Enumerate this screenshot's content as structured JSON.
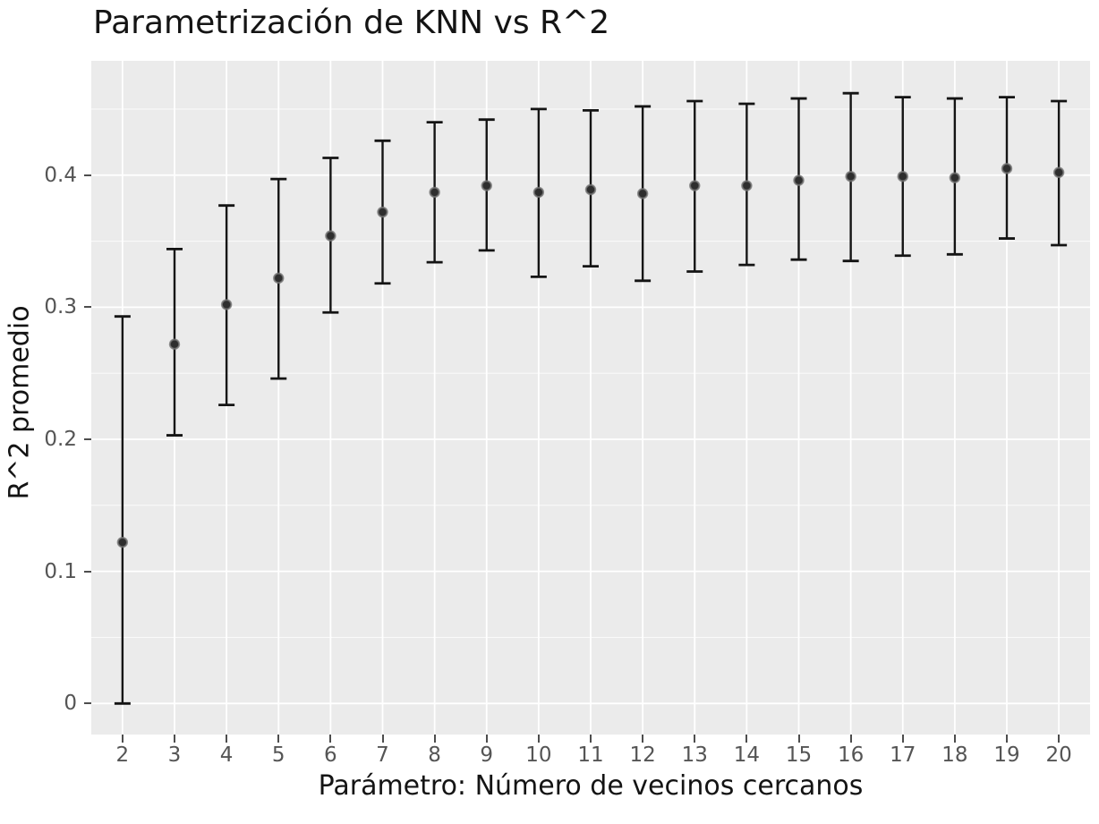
{
  "chart_data": {
    "type": "scatter",
    "subtype": "errorbar",
    "title": "Parametrización de KNN vs R^2",
    "xlabel": "Parámetro: Número de vecinos cercanos",
    "ylabel": "R^2 promedio",
    "x": [
      2,
      3,
      4,
      5,
      6,
      7,
      8,
      9,
      10,
      11,
      12,
      13,
      14,
      15,
      16,
      17,
      18,
      19,
      20
    ],
    "series": [
      {
        "name": "R^2 promedio",
        "values": [
          0.122,
          0.272,
          0.302,
          0.322,
          0.354,
          0.372,
          0.387,
          0.392,
          0.387,
          0.389,
          0.386,
          0.392,
          0.392,
          0.396,
          0.399,
          0.399,
          0.398,
          0.405,
          0.402
        ],
        "err_lower": [
          0.0,
          0.203,
          0.226,
          0.246,
          0.296,
          0.318,
          0.334,
          0.343,
          0.323,
          0.331,
          0.32,
          0.327,
          0.332,
          0.336,
          0.335,
          0.339,
          0.34,
          0.352,
          0.347
        ],
        "err_upper": [
          0.293,
          0.344,
          0.377,
          0.397,
          0.413,
          0.426,
          0.44,
          0.442,
          0.45,
          0.449,
          0.452,
          0.456,
          0.454,
          0.458,
          0.462,
          0.459,
          0.458,
          0.459,
          0.456
        ]
      }
    ],
    "xticks": [
      2,
      3,
      4,
      5,
      6,
      7,
      8,
      9,
      10,
      11,
      12,
      13,
      14,
      15,
      16,
      17,
      18,
      19,
      20
    ],
    "xtick_labels": [
      "2",
      "3",
      "4",
      "5",
      "6",
      "7",
      "8",
      "9",
      "10",
      "11",
      "12",
      "13",
      "14",
      "15",
      "16",
      "17",
      "18",
      "19",
      "20"
    ],
    "yticks": [
      0,
      0.1,
      0.2,
      0.3,
      0.4
    ],
    "ytick_labels": [
      "0",
      "0.1",
      "0.2",
      "0.3",
      "0.4"
    ],
    "minor_yticks": [
      0.05,
      0.15,
      0.25,
      0.35,
      0.45
    ],
    "xlim": [
      1.4,
      20.6
    ],
    "ylim": [
      -0.0235,
      0.4865
    ],
    "grid": "on",
    "legend": "none",
    "colors": {
      "figure_bg": "#FFFFFF",
      "panel_bg": "#EBEBEB",
      "grid_major": "#FFFFFF",
      "grid_minor": "#FFFFFF",
      "errorbar": "#141414",
      "marker_fill": "#2E2E2E",
      "marker_edge": "#757575",
      "tick_label": "#555555",
      "text": "#141414"
    }
  }
}
